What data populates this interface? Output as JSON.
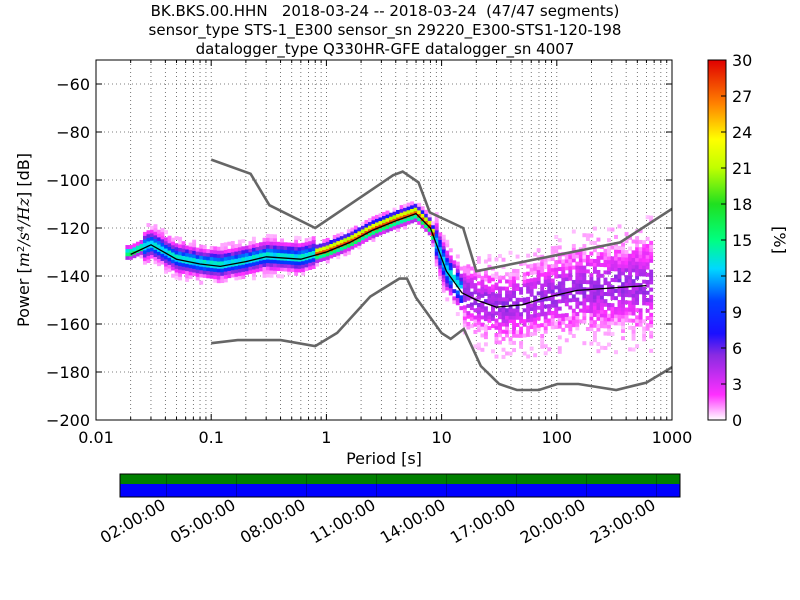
{
  "header": {
    "title_lines": [
      "BK.BKS.00.HHN   2018-03-24 -- 2018-03-24  (47/47 segments)",
      "sensor_type STS-1_E300 sensor_sn 29220_E300-STS1-120-198",
      "datalogger_type Q330HR-GFE datalogger_sn 4007"
    ]
  },
  "chart_data": {
    "type": "heatmap",
    "subtype": "probabilistic-power-spectral-density",
    "xlabel": "Period [s]",
    "ylabel": "Power [m^2/s^4/Hz] [dB]",
    "x_scale": "log",
    "xlim": [
      0.01,
      1000
    ],
    "ylim": [
      -200,
      -50
    ],
    "x_ticks": [
      0.01,
      0.1,
      1,
      10,
      100,
      1000
    ],
    "x_tick_labels": [
      "0.01",
      "0.1",
      "1",
      "10",
      "100",
      "1000"
    ],
    "y_ticks": [
      -200,
      -180,
      -160,
      -140,
      -120,
      -100,
      -80,
      -60
    ],
    "y_tick_labels": [
      "−200",
      "−180",
      "−160",
      "−140",
      "−120",
      "−100",
      "−80",
      "−60"
    ],
    "grid": true,
    "colorbar": {
      "label": "[%]",
      "min": 0,
      "max": 30,
      "ticks": [
        0,
        3,
        6,
        9,
        12,
        15,
        18,
        21,
        24,
        27,
        30
      ],
      "colormap": "pqlx"
    },
    "noise_models": {
      "nhnm": [
        [
          0.1,
          -91.5
        ],
        [
          0.22,
          -97.4
        ],
        [
          0.32,
          -110.5
        ],
        [
          0.8,
          -120
        ],
        [
          3.8,
          -98
        ],
        [
          4.6,
          -96.5
        ],
        [
          6.3,
          -101
        ],
        [
          7.9,
          -113.5
        ],
        [
          15.4,
          -120
        ],
        [
          20,
          -138
        ],
        [
          354.8,
          -126
        ],
        [
          1000,
          -112
        ]
      ],
      "nlnm": [
        [
          0.1,
          -168
        ],
        [
          0.17,
          -166.7
        ],
        [
          0.4,
          -166.7
        ],
        [
          0.8,
          -169.2
        ],
        [
          1.24,
          -163.7
        ],
        [
          2.4,
          -148.6
        ],
        [
          4.3,
          -141.1
        ],
        [
          5,
          -141.1
        ],
        [
          6,
          -149
        ],
        [
          10,
          -163.8
        ],
        [
          12,
          -166.2
        ],
        [
          15.6,
          -162.1
        ],
        [
          21.9,
          -177.5
        ],
        [
          31.6,
          -185
        ],
        [
          45,
          -187.5
        ],
        [
          70,
          -187.5
        ],
        [
          101,
          -185
        ],
        [
          154,
          -185
        ],
        [
          328,
          -187.5
        ],
        [
          600,
          -184.4
        ],
        [
          1000,
          -178
        ]
      ]
    },
    "mean_curve": [
      [
        0.02,
        -131
      ],
      [
        0.03,
        -127
      ],
      [
        0.05,
        -133
      ],
      [
        0.08,
        -135
      ],
      [
        0.12,
        -136
      ],
      [
        0.2,
        -134
      ],
      [
        0.3,
        -132
      ],
      [
        0.6,
        -133
      ],
      [
        1,
        -130
      ],
      [
        1.6,
        -126
      ],
      [
        2.5,
        -121
      ],
      [
        4,
        -117
      ],
      [
        6,
        -114
      ],
      [
        8,
        -120
      ],
      [
        11,
        -138
      ],
      [
        15,
        -147
      ],
      [
        20,
        -150
      ],
      [
        30,
        -153
      ],
      [
        50,
        -152
      ],
      [
        80,
        -149
      ],
      [
        150,
        -146
      ],
      [
        300,
        -145
      ],
      [
        600,
        -144
      ]
    ],
    "time_coverage": {
      "tick_labels": [
        "02:00:00",
        "05:00:00",
        "08:00:00",
        "11:00:00",
        "14:00:00",
        "17:00:00",
        "20:00:00",
        "23:00:00"
      ],
      "tick_hours": [
        2,
        5,
        8,
        11,
        14,
        17,
        20,
        23
      ],
      "start_hour": 0,
      "end_hour": 24,
      "top_bar_color": "#008000",
      "bottom_bar_color": "#0000ff"
    }
  },
  "colors": {
    "noise_model": "#666666",
    "mean_curve": "#000000",
    "grid": "#555555"
  }
}
